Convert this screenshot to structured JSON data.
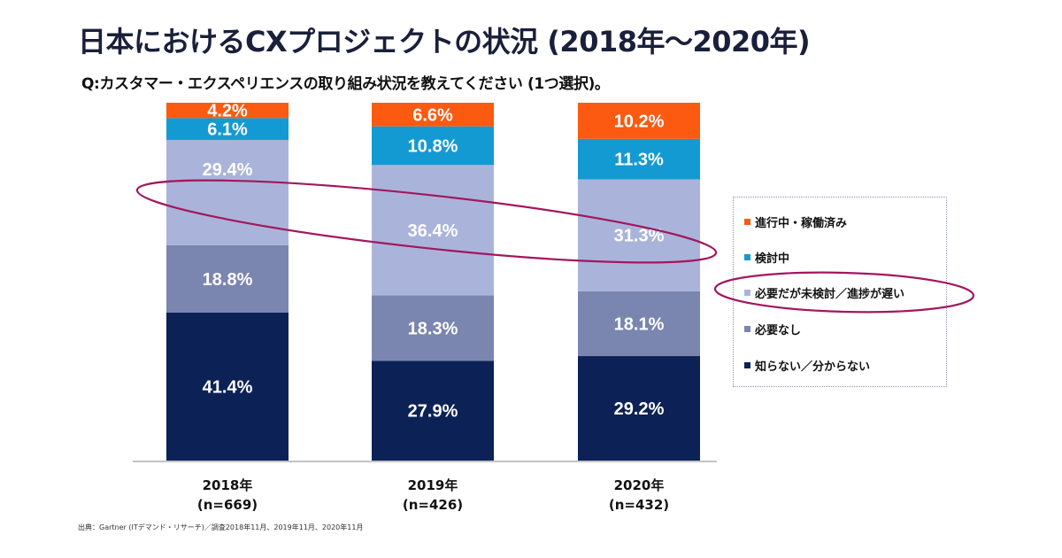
{
  "title": "日本におけるCXプロジェクトの状況 (2018年～2020年)",
  "question": "Q:カスタマー・エクスペリエンスの取り組み状況を教えてください (1つ選択)。",
  "footnote": "出典：Gartner (ITデマンド・リサーチ)／調査2018年11月、2019年11月、2020年11月",
  "chart_data": {
    "type": "bar",
    "stacked": true,
    "normalized": true,
    "title": "日本におけるCXプロジェクトの状況 (2018年～2020年)",
    "xlabel": "",
    "ylabel": "",
    "ylim": [
      0,
      100
    ],
    "grid": false,
    "legend_position": "right",
    "categories": [
      "2018年",
      "2019年",
      "2020年"
    ],
    "category_sublabels": [
      "(n=669)",
      "(n=426)",
      "(n=432)"
    ],
    "series": [
      {
        "name": "知らない／分からない",
        "color": "#0c2256",
        "values": [
          41.4,
          27.9,
          29.2
        ],
        "labels": [
          "41.4%",
          "27.9%",
          "29.2%"
        ]
      },
      {
        "name": "必要なし",
        "color": "#7a86b0",
        "values": [
          18.8,
          18.3,
          18.1
        ],
        "labels": [
          "18.8%",
          "18.3%",
          "18.1%"
        ]
      },
      {
        "name": "必要だが未検討／進捗が遅い",
        "color": "#aab4da",
        "values": [
          29.4,
          36.4,
          31.3
        ],
        "labels": [
          "29.4%",
          "36.4%",
          "31.3%"
        ]
      },
      {
        "name": "検討中",
        "color": "#149ad2",
        "values": [
          6.1,
          10.8,
          11.3
        ],
        "labels": [
          "6.1%",
          "10.8%",
          "11.3%"
        ]
      },
      {
        "name": "進行中・稼働済み",
        "color": "#fb5a10",
        "values": [
          4.2,
          6.6,
          10.2
        ],
        "labels": [
          "4.2%",
          "6.6%",
          "10.2%"
        ]
      }
    ],
    "annotations": [
      {
        "type": "ellipse-highlight",
        "target": "必要だが未検討／進捗が遅い",
        "scope": "bars",
        "color": "#a3175d"
      },
      {
        "type": "ellipse-highlight",
        "target": "必要だが未検討／進捗が遅い",
        "scope": "legend",
        "color": "#a3175d"
      }
    ]
  },
  "legend": {
    "items": [
      {
        "label": "進行中・稼働済み",
        "color": "#fb5a10"
      },
      {
        "label": "検討中",
        "color": "#149ad2"
      },
      {
        "label": "必要だが未検討／進捗が遅い",
        "color": "#aab4da"
      },
      {
        "label": "必要なし",
        "color": "#7a86b0"
      },
      {
        "label": "知らない／分からない",
        "color": "#0c2256"
      }
    ]
  }
}
